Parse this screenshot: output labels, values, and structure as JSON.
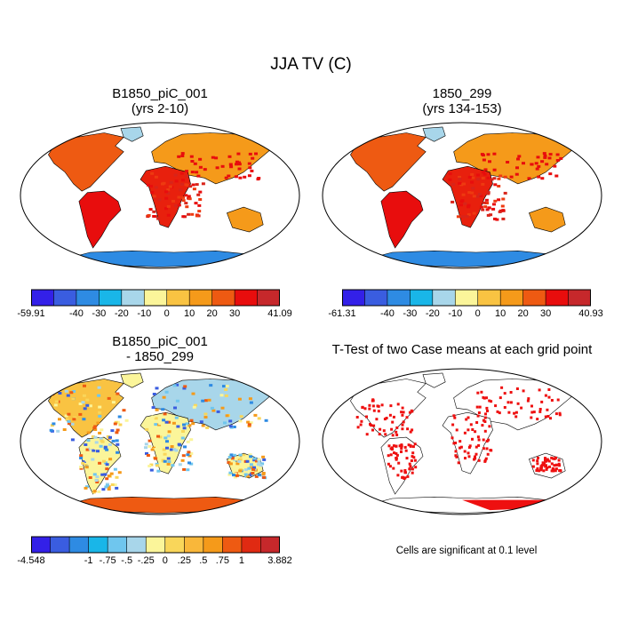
{
  "figure": {
    "title": "JJA TV (C)"
  },
  "panels": [
    {
      "id": "case1",
      "title": "B1850_piC_001",
      "subtitle": "(yrs 2-10)",
      "field": "tv"
    },
    {
      "id": "case2",
      "title": "1850_299",
      "subtitle": "(yrs 134-153)",
      "field": "tv"
    },
    {
      "id": "diff",
      "title": "B1850_piC_001",
      "subtitle": "- 1850_299",
      "field": "diff"
    },
    {
      "id": "ttest",
      "title": "T-Test of two Case means at each grid point",
      "subtitle": "",
      "field": "sig"
    }
  ],
  "colorbars": [
    {
      "id": "cbar1",
      "min_label": "-59.91",
      "max_label": "41.09",
      "ticks": [
        "-40",
        "-30",
        "-20",
        "-10",
        "0",
        "10",
        "20",
        "30"
      ],
      "colors": [
        "#3320e8",
        "#3a5de0",
        "#2e8be3",
        "#19b6e8",
        "#a8d6ea",
        "#fbf59a",
        "#f9c342",
        "#f59a1a",
        "#ee5a12",
        "#e80d0d",
        "#c6282b"
      ]
    },
    {
      "id": "cbar2",
      "min_label": "-61.31",
      "max_label": "40.93",
      "ticks": [
        "-40",
        "-30",
        "-20",
        "-10",
        "0",
        "10",
        "20",
        "30"
      ],
      "colors": [
        "#3320e8",
        "#3a5de0",
        "#2e8be3",
        "#19b6e8",
        "#a8d6ea",
        "#fbf59a",
        "#f9c342",
        "#f59a1a",
        "#ee5a12",
        "#e80d0d",
        "#c6282b"
      ]
    },
    {
      "id": "cbar3",
      "min_label": "-4.548",
      "max_label": "3.882",
      "ticks": [
        "-1",
        "-.75",
        "-.5",
        "-.25",
        "0",
        ".25",
        ".5",
        ".75",
        "1"
      ],
      "colors": [
        "#3320e8",
        "#3a5de0",
        "#2e8be3",
        "#19b6e8",
        "#6fc6ee",
        "#a8d6ea",
        "#fbf59a",
        "#f9d65a",
        "#f9b73a",
        "#f59a1a",
        "#ee5a12",
        "#e02a12",
        "#c6282b"
      ]
    }
  ],
  "significance_note": "Cells are significant at 0.1 level",
  "colors": {
    "significant": "#ee1010",
    "coastline": "#000000",
    "land_blank": "#ffffff"
  }
}
